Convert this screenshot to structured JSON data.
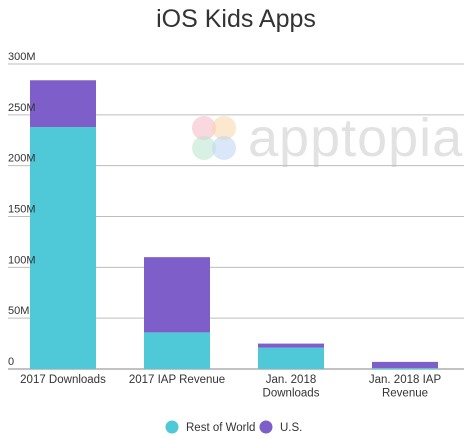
{
  "watermark": {
    "text": "apptopia",
    "colors": [
      "#f4b8c5",
      "#f7d6a6",
      "#b9e6cf",
      "#bcd3f2"
    ]
  },
  "chart_data": {
    "type": "bar",
    "stacked": true,
    "title": "iOS Kids Apps",
    "categories": [
      [
        "2017 Downloads"
      ],
      [
        "2017 IAP Revenue"
      ],
      [
        "Jan. 2018",
        "Downloads"
      ],
      [
        "Jan. 2018 IAP",
        "Revenue"
      ]
    ],
    "series": [
      {
        "name": "Rest of World",
        "color": "#4fc9d8",
        "values": [
          238,
          36,
          21,
          1
        ]
      },
      {
        "name": "U.S.",
        "color": "#7e5ec8",
        "values": [
          46,
          74,
          4,
          6
        ]
      }
    ],
    "ylim": [
      0,
      300
    ],
    "yticks": [
      0,
      50,
      100,
      150,
      200,
      250,
      300
    ],
    "ytick_labels": [
      "0",
      "50M",
      "100M",
      "150M",
      "200M",
      "250M",
      "300M"
    ],
    "grid": true,
    "legend": "bottom-center"
  }
}
